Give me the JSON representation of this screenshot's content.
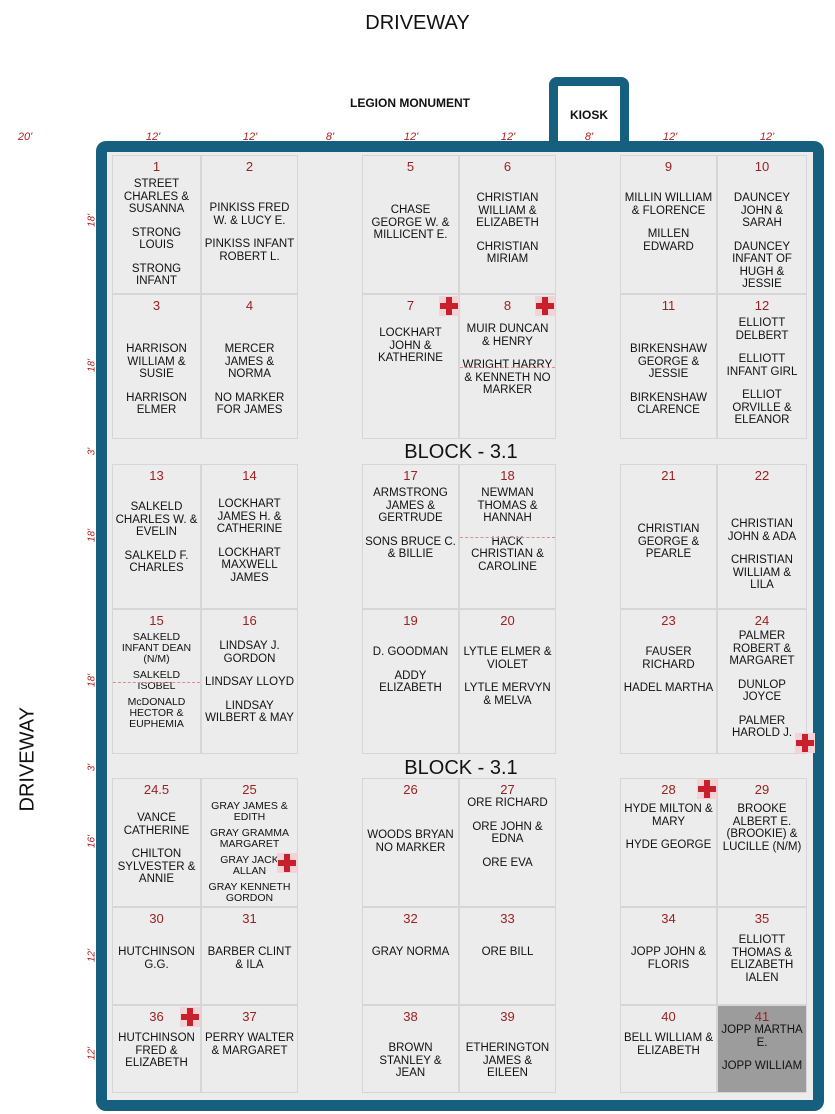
{
  "roads": {
    "top": "DRIVEWAY",
    "left": "DRIVEWAY"
  },
  "monument": "LEGION MONUMENT",
  "kiosk": "KIOSK",
  "top_dims": [
    "20'",
    "12'",
    "12'",
    "8'",
    "12'",
    "12'",
    "8'",
    "12'",
    "12'"
  ],
  "side_dims": [
    "18'",
    "18'",
    "3'",
    "18'",
    "18'",
    "3'",
    "16'",
    "12'",
    "12'"
  ],
  "blocks": [
    "BLOCK - 3.1",
    "BLOCK - 3.1"
  ],
  "colors": {
    "frame": "#175f7e",
    "plot_number": "#9b2020",
    "marker": "#c8202c",
    "reserved": "#9c9c9c"
  },
  "plots": [
    {
      "num": "1",
      "names": [
        "STREET CHARLES & SUSANNA",
        "STRONG LOUIS",
        "STRONG INFANT"
      ]
    },
    {
      "num": "2",
      "names": [
        "PINKISS FRED W. & LUCY E.",
        "PINKISS INFANT ROBERT L."
      ]
    },
    {
      "num": "5",
      "names": [
        "CHASE GEORGE W. & MILLICENT E."
      ]
    },
    {
      "num": "6",
      "names": [
        "CHRISTIAN WILLIAM & ELIZABETH",
        "CHRISTIAN MIRIAM"
      ]
    },
    {
      "num": "9",
      "names": [
        "MILLIN WILLIAM & FLORENCE",
        "MILLEN EDWARD"
      ]
    },
    {
      "num": "10",
      "names": [
        "DAUNCEY JOHN & SARAH",
        "DAUNCEY INFANT OF HUGH & JESSIE"
      ]
    },
    {
      "num": "3",
      "names": [
        "HARRISON WILLIAM & SUSIE",
        "HARRISON ELMER"
      ]
    },
    {
      "num": "4",
      "names": [
        "MERCER JAMES & NORMA",
        "NO MARKER FOR JAMES"
      ]
    },
    {
      "num": "7",
      "names": [
        "LOCKHART JOHN & KATHERINE"
      ]
    },
    {
      "num": "8",
      "names": [
        "MUIR DUNCAN & HENRY",
        "WRIGHT HARRY & KENNETH NO MARKER"
      ]
    },
    {
      "num": "11",
      "names": [
        "BIRKENSHAW GEORGE & JESSIE",
        "BIRKENSHAW CLARENCE"
      ]
    },
    {
      "num": "12",
      "names": [
        "ELLIOTT DELBERT",
        "ELLIOTT INFANT GIRL",
        "ELLIOT ORVILLE & ELEANOR"
      ]
    },
    {
      "num": "13",
      "names": [
        "SALKELD CHARLES W. & EVELIN",
        "SALKELD F. CHARLES"
      ]
    },
    {
      "num": "14",
      "names": [
        "LOCKHART JAMES H. & CATHERINE",
        "LOCKHART MAXWELL JAMES"
      ]
    },
    {
      "num": "17",
      "names": [
        "ARMSTRONG JAMES & GERTRUDE",
        "SONS BRUCE C. & BILLIE"
      ]
    },
    {
      "num": "18",
      "names": [
        "NEWMAN THOMAS & HANNAH",
        "HACK CHRISTIAN & CAROLINE"
      ]
    },
    {
      "num": "21",
      "names": [
        "CHRISTIAN GEORGE & PEARLE"
      ]
    },
    {
      "num": "22",
      "names": [
        "CHRISTIAN JOHN & ADA",
        "CHRISTIAN WILLIAM & LILA"
      ]
    },
    {
      "num": "15",
      "names": [
        "SALKELD INFANT DEAN (N/M)",
        "SALKELD ISOBEL",
        "McDONALD HECTOR & EUPHEMIA"
      ]
    },
    {
      "num": "16",
      "names": [
        "LINDSAY J. GORDON",
        "LINDSAY LLOYD",
        "LINDSAY WILBERT & MAY"
      ]
    },
    {
      "num": "19",
      "names": [
        "D. GOODMAN",
        "ADDY ELIZABETH"
      ]
    },
    {
      "num": "20",
      "names": [
        "LYTLE ELMER & VIOLET",
        "LYTLE MERVYN & MELVA"
      ]
    },
    {
      "num": "23",
      "names": [
        "FAUSER RICHARD",
        "HADEL MARTHA"
      ]
    },
    {
      "num": "24",
      "names": [
        "PALMER ROBERT & MARGARET",
        "DUNLOP JOYCE",
        "PALMER HAROLD J."
      ]
    },
    {
      "num": "24.5",
      "names": [
        "VANCE CATHERINE",
        "CHILTON SYLVESTER & ANNIE"
      ]
    },
    {
      "num": "25",
      "names": [
        "GRAY JAMES & EDITH",
        "GRAY GRAMMA MARGARET",
        "GRAY JACK ALLAN",
        "GRAY KENNETH GORDON"
      ]
    },
    {
      "num": "26",
      "names": [
        "WOODS BRYAN NO MARKER"
      ]
    },
    {
      "num": "27",
      "names": [
        "ORE RICHARD",
        "ORE JOHN & EDNA",
        "ORE EVA"
      ]
    },
    {
      "num": "28",
      "names": [
        "HYDE MILTON & MARY",
        "HYDE GEORGE"
      ]
    },
    {
      "num": "29",
      "names": [
        "BROOKE ALBERT E. (BROOKIE) & LUCILLE (N/M)"
      ]
    },
    {
      "num": "30",
      "names": [
        "HUTCHINSON G.G."
      ]
    },
    {
      "num": "31",
      "names": [
        "BARBER CLINT & ILA"
      ]
    },
    {
      "num": "32",
      "names": [
        "GRAY NORMA"
      ]
    },
    {
      "num": "33",
      "names": [
        "ORE BILL"
      ]
    },
    {
      "num": "34",
      "names": [
        "JOPP JOHN & FLORIS"
      ]
    },
    {
      "num": "35",
      "names": [
        "ELLIOTT THOMAS & ELIZABETH IALEN"
      ]
    },
    {
      "num": "36",
      "names": [
        "HUTCHINSON FRED & ELIZABETH"
      ]
    },
    {
      "num": "37",
      "names": [
        "PERRY WALTER & MARGARET"
      ]
    },
    {
      "num": "38",
      "names": [
        "BROWN STANLEY & JEAN"
      ]
    },
    {
      "num": "39",
      "names": [
        "ETHERINGTON JAMES & EILEEN"
      ]
    },
    {
      "num": "40",
      "names": [
        "BELL WILLIAM & ELIZABETH"
      ]
    },
    {
      "num": "41",
      "names": [
        "JOPP MARTHA E.",
        "JOPP WILLIAM"
      ]
    }
  ]
}
